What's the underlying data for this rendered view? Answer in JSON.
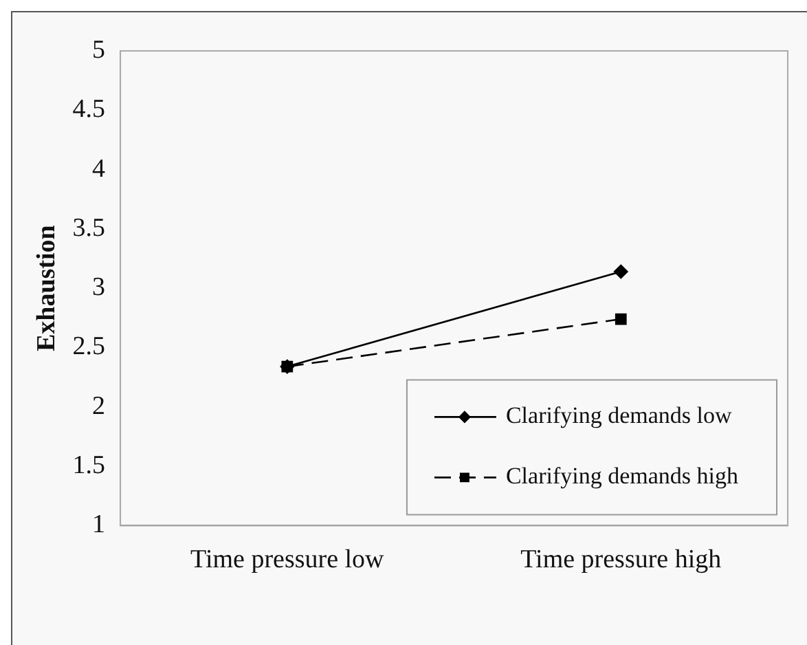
{
  "chart_data": {
    "type": "line",
    "ylabel": "Exhaustion",
    "categories": [
      "Time pressure low",
      "Time pressure high"
    ],
    "series": [
      {
        "name": "Clarifying demands low",
        "color": "#000000",
        "values": [
          2.34,
          3.14
        ],
        "marker": "diamond",
        "line_style": "solid"
      },
      {
        "name": "Clarifying demands high",
        "color": "#000000",
        "values": [
          2.34,
          2.74
        ],
        "marker": "square",
        "line_style": "dashed"
      }
    ],
    "ylim": [
      1,
      5
    ],
    "yticks": [
      1,
      1.5,
      2,
      2.5,
      3,
      3.5,
      4,
      4.5,
      5
    ],
    "grid": false,
    "legend": "bottom right"
  }
}
